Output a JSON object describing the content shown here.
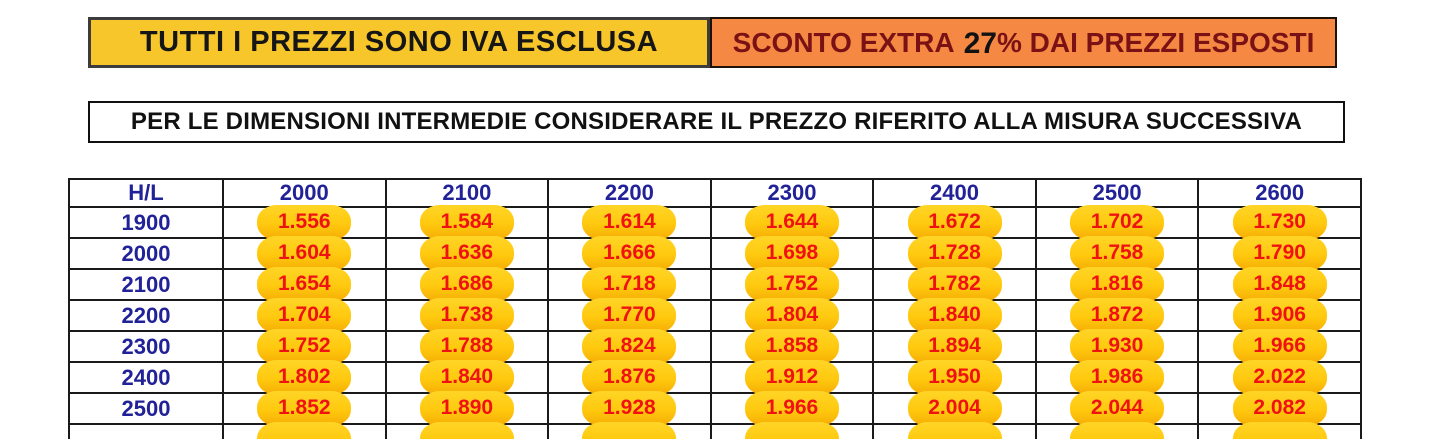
{
  "banners": {
    "iva_text": "TUTTI I PREZZI SONO IVA ESCLUSA",
    "sconto": {
      "prefix": "SCONTO EXTRA",
      "percent": "27",
      "suffix": "% DAI PREZZI ESPOSTI"
    },
    "note_text": "PER LE DIMENSIONI INTERMEDIE CONSIDERARE IL PREZZO RIFERITO ALLA MISURA SUCCESSIVA"
  },
  "colors": {
    "banner-yellow": "#f6c62a",
    "banner-orange": "#f58843",
    "maroon": "#7a1215",
    "navy": "#222298",
    "price-red": "#f01212",
    "blob-gold": "#ffc90e"
  },
  "table": {
    "corner_label": "H/L",
    "columns": [
      "2000",
      "2100",
      "2200",
      "2300",
      "2400",
      "2500",
      "2600"
    ],
    "rows": [
      {
        "label": "1900",
        "values": [
          "1.556",
          "1.584",
          "1.614",
          "1.644",
          "1.672",
          "1.702",
          "1.730"
        ]
      },
      {
        "label": "2000",
        "values": [
          "1.604",
          "1.636",
          "1.666",
          "1.698",
          "1.728",
          "1.758",
          "1.790"
        ]
      },
      {
        "label": "2100",
        "values": [
          "1.654",
          "1.686",
          "1.718",
          "1.752",
          "1.782",
          "1.816",
          "1.848"
        ]
      },
      {
        "label": "2200",
        "values": [
          "1.704",
          "1.738",
          "1.770",
          "1.804",
          "1.840",
          "1.872",
          "1.906"
        ]
      },
      {
        "label": "2300",
        "values": [
          "1.752",
          "1.788",
          "1.824",
          "1.858",
          "1.894",
          "1.930",
          "1.966"
        ]
      },
      {
        "label": "2400",
        "values": [
          "1.802",
          "1.840",
          "1.876",
          "1.912",
          "1.950",
          "1.986",
          "2.022"
        ]
      },
      {
        "label": "2500",
        "values": [
          "1.852",
          "1.890",
          "1.928",
          "1.966",
          "2.004",
          "2.044",
          "2.082"
        ]
      }
    ],
    "partial_next_row_visible": true
  }
}
